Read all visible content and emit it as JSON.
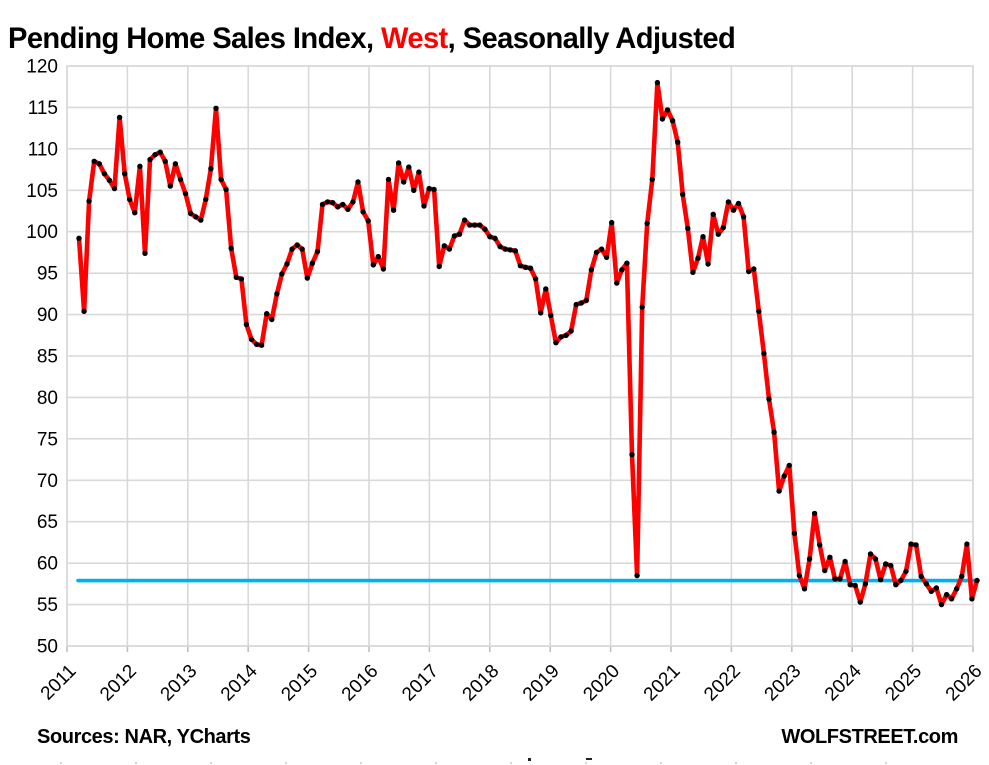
{
  "title": {
    "prefix": "Pending Home Sales Index, ",
    "highlight": "West",
    "suffix": ", Seasonally Adjusted",
    "highlight_color": "#ff0000"
  },
  "footer": {
    "left": "Sources: NAR, YCharts",
    "right": "WOLFSTREET.com"
  },
  "colors": {
    "line": "#ff0000",
    "marker": "#000000",
    "reference_line": "#00b0f0",
    "grid": "#d9d9d9",
    "text": "#000000",
    "background": "#ffffff"
  },
  "chart_data": {
    "type": "line",
    "title": "Pending Home Sales Index, West, Seasonally Adjusted",
    "xlabel": "",
    "ylabel": "",
    "ylim": [
      50,
      120
    ],
    "grid": true,
    "legend_position": "none",
    "y_ticks": [
      120,
      115,
      110,
      105,
      100,
      95,
      90,
      85,
      80,
      75,
      70,
      65,
      60,
      55,
      50
    ],
    "x_tick_labels": [
      "2011",
      "2012",
      "2013",
      "2014",
      "2015",
      "2016",
      "2017",
      "2018",
      "2019",
      "2020",
      "2021",
      "2022",
      "2023",
      "2024",
      "2025",
      "2026"
    ],
    "reference_line": {
      "value": 57.9,
      "color": "#00b0f0"
    },
    "series": [
      {
        "name": "Pending Home Sales Index, West",
        "frequency": "monthly",
        "start": "2011-02",
        "end": "2025-11",
        "color": "#ff0000",
        "marker_color": "#000000",
        "values": [
          99.2,
          90.4,
          103.7,
          108.5,
          108.2,
          107.0,
          106.2,
          105.2,
          113.8,
          107.0,
          103.9,
          102.3,
          107.9,
          97.4,
          108.7,
          109.3,
          109.6,
          108.5,
          105.5,
          108.2,
          106.3,
          104.6,
          102.2,
          101.8,
          101.4,
          103.9,
          107.6,
          114.9,
          106.3,
          105.1,
          98.0,
          94.5,
          94.3,
          88.8,
          87.0,
          86.4,
          86.3,
          90.1,
          89.4,
          92.5,
          94.9,
          96.1,
          97.9,
          98.4,
          97.9,
          94.4,
          96.2,
          97.6,
          103.3,
          103.6,
          103.5,
          103.0,
          103.3,
          102.7,
          103.6,
          106.0,
          102.4,
          101.3,
          96.0,
          97.0,
          95.5,
          106.3,
          102.6,
          108.3,
          106.0,
          107.8,
          105.0,
          107.2,
          103.1,
          105.2,
          105.1,
          95.8,
          98.3,
          97.9,
          99.5,
          99.7,
          101.4,
          100.8,
          100.8,
          100.8,
          100.3,
          99.4,
          99.2,
          98.2,
          97.9,
          97.8,
          97.7,
          95.9,
          95.7,
          95.6,
          94.3,
          90.2,
          93.1,
          89.9,
          86.6,
          87.3,
          87.5,
          88.0,
          91.2,
          91.4,
          91.7,
          95.4,
          97.5,
          97.9,
          96.9,
          101.1,
          93.8,
          95.4,
          96.2,
          73.1,
          58.5,
          90.9,
          101.0,
          106.3,
          118.0,
          113.6,
          114.7,
          113.4,
          110.8,
          104.5,
          100.4,
          95.1,
          96.8,
          99.4,
          96.1,
          102.1,
          99.7,
          100.5,
          103.6,
          102.6,
          103.4,
          101.8,
          95.2,
          95.5,
          90.4,
          85.3,
          79.8,
          75.8,
          68.7,
          70.5,
          71.8,
          63.6,
          58.5,
          56.9,
          60.5,
          66.0,
          62.2,
          59.1,
          60.7,
          58.1,
          58.1,
          60.2,
          57.4,
          57.3,
          55.3,
          57.5,
          61.1,
          60.5,
          58.0,
          59.9,
          59.7,
          57.4,
          57.9,
          59.0,
          62.3,
          62.2,
          58.4,
          57.5,
          56.6,
          57.0,
          55.0,
          56.2,
          55.7,
          56.9,
          58.4,
          62.3,
          55.7,
          57.9
        ]
      }
    ]
  }
}
